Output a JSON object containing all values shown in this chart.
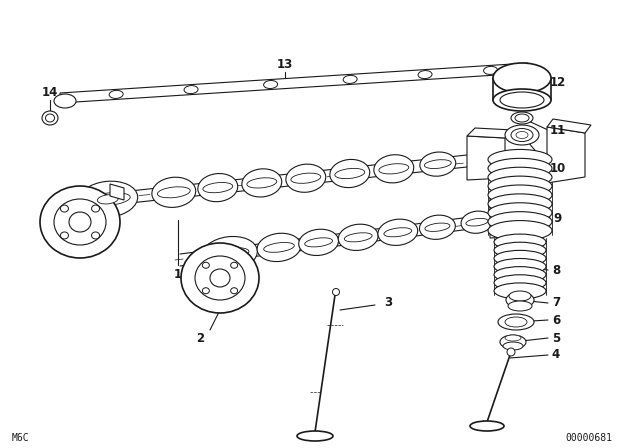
{
  "bg_color": "#ffffff",
  "line_color": "#1a1a1a",
  "fig_width": 6.4,
  "fig_height": 4.48,
  "dpi": 100,
  "bottom_left_text": "M6C",
  "bottom_right_text": "00000681"
}
